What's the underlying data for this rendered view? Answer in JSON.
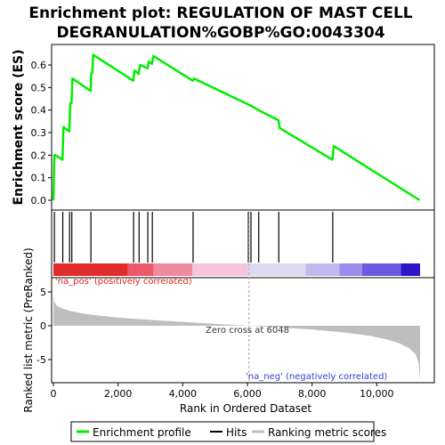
{
  "title_line1": "Enrichment plot: REGULATION OF MAST CELL",
  "title_line2": "DEGRANULATION%GOBP%GO:0043304",
  "colors": {
    "profile": "#00ee00",
    "hits": "#000000",
    "metric": "#bebebe",
    "pos_text": "#e32222",
    "neg_text": "#3a3ad0"
  },
  "chart_data": [
    {
      "type": "line",
      "name": "enrichment-profile",
      "ylabel": "Enrichment score (ES)",
      "ylim": [
        0,
        0.65
      ],
      "yticks": [
        "0.0",
        "0.1",
        "0.2",
        "0.3",
        "0.4",
        "0.5",
        "0.6"
      ],
      "x": [
        0,
        30,
        60,
        280,
        310,
        490,
        520,
        560,
        590,
        1150,
        1170,
        1200,
        1230,
        2470,
        2510,
        2640,
        2680,
        2910,
        2950,
        3050,
        3090,
        4310,
        4350,
        6020,
        6100,
        6340,
        6960,
        7000,
        8630,
        8670,
        11330
      ],
      "y": [
        0.0,
        0.2,
        0.2,
        0.18,
        0.325,
        0.305,
        0.43,
        0.43,
        0.54,
        0.485,
        0.56,
        0.565,
        0.645,
        0.53,
        0.575,
        0.56,
        0.6,
        0.585,
        0.615,
        0.605,
        0.64,
        0.53,
        0.54,
        0.425,
        0.42,
        0.4,
        0.355,
        0.32,
        0.18,
        0.24,
        0.0
      ]
    },
    {
      "type": "scatter",
      "name": "hits",
      "x": [
        30,
        290,
        500,
        570,
        1160,
        2480,
        2650,
        2920,
        3060,
        4320,
        6030,
        6110,
        6350,
        6970,
        8640
      ]
    },
    {
      "type": "area",
      "name": "ranking-metric",
      "ylabel": "Ranked list metric (PreRanked)",
      "xlabel": "Rank in Ordered Dataset",
      "xlim": [
        0,
        11340
      ],
      "xticks": [
        "0",
        "2,000",
        "4,000",
        "6,000",
        "8,000",
        "10,000"
      ],
      "ylim": [
        -8.5,
        7
      ],
      "yticks": [
        "5",
        "0",
        "-5"
      ],
      "x": [
        0,
        20,
        100,
        300,
        600,
        1000,
        1500,
        2000,
        3000,
        4000,
        5000,
        6048,
        7000,
        8000,
        9000,
        9800,
        10300,
        10700,
        11000,
        11200,
        11300,
        11340
      ],
      "y": [
        5.0,
        3.6,
        3.0,
        2.5,
        2.1,
        1.75,
        1.45,
        1.2,
        0.85,
        0.55,
        0.28,
        0.0,
        -0.25,
        -0.55,
        -1.0,
        -1.5,
        -2.0,
        -2.6,
        -3.3,
        -4.2,
        -5.5,
        -8.0
      ],
      "zero_cross_label": "Zero cross at 6048",
      "pos_label": "'na_pos' (positively correlated)",
      "neg_label": "'na_neg' (negatively correlated)"
    }
  ],
  "legend": {
    "items": [
      {
        "label": "Enrichment profile",
        "color": "#00ee00"
      },
      {
        "label": "Hits",
        "color": "#000000"
      },
      {
        "label": "Ranking metric scores",
        "color": "#bebebe"
      }
    ]
  }
}
